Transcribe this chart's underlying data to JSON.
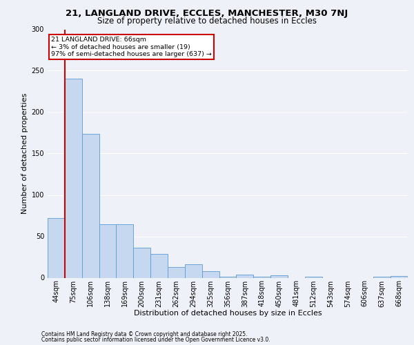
{
  "title1": "21, LANGLAND DRIVE, ECCLES, MANCHESTER, M30 7NJ",
  "title2": "Size of property relative to detached houses in Eccles",
  "xlabel": "Distribution of detached houses by size in Eccles",
  "ylabel": "Number of detached properties",
  "categories": [
    "44sqm",
    "75sqm",
    "106sqm",
    "138sqm",
    "169sqm",
    "200sqm",
    "231sqm",
    "262sqm",
    "294sqm",
    "325sqm",
    "356sqm",
    "387sqm",
    "418sqm",
    "450sqm",
    "481sqm",
    "512sqm",
    "543sqm",
    "574sqm",
    "606sqm",
    "637sqm",
    "668sqm"
  ],
  "values": [
    72,
    240,
    174,
    65,
    65,
    36,
    29,
    13,
    16,
    8,
    1,
    4,
    1,
    3,
    0,
    1,
    0,
    0,
    0,
    1,
    2
  ],
  "bar_color": "#c5d8f0",
  "bar_edge_color": "#5b9bd5",
  "annotation_text": "21 LANGLAND DRIVE: 66sqm\n← 3% of detached houses are smaller (19)\n97% of semi-detached houses are larger (637) →",
  "annotation_box_color": "#ffffff",
  "annotation_box_edge": "#cc0000",
  "footer1": "Contains HM Land Registry data © Crown copyright and database right 2025.",
  "footer2": "Contains public sector information licensed under the Open Government Licence v3.0.",
  "background_color": "#eef2f8",
  "plot_background": "#eef2f8",
  "ylim": [
    0,
    300
  ],
  "yticks": [
    0,
    50,
    100,
    150,
    200,
    250,
    300
  ],
  "red_line_color": "#cc0000",
  "grid_color": "#ffffff",
  "title1_fontsize": 9.5,
  "title2_fontsize": 8.5,
  "xlabel_fontsize": 8,
  "ylabel_fontsize": 8,
  "tick_fontsize": 7,
  "footer_fontsize": 5.5
}
